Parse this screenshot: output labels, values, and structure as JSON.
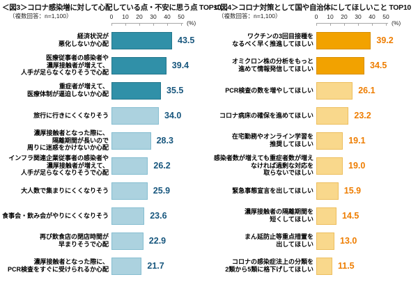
{
  "page": {
    "background": "#ffffff"
  },
  "chart_data": [
    {
      "type": "bar",
      "orientation": "horizontal",
      "title": "＜図3＞コロナ感染増に対して心配している点・不安に思う点 TOP10",
      "subtitle": "（複数回答：n=1,100）",
      "axis_unit": "(%)",
      "xlim": [
        0,
        50
      ],
      "ticks": [
        0,
        10,
        20,
        30,
        40,
        50
      ],
      "grid": false,
      "legend": "none",
      "categories": [
        "経済状況が\n悪化しないか心配",
        "医療従事者の感染者や\n濃厚接触者が増えて、\n人手が足らなくなりそうで心配",
        "重症者が増えて、\n医療体制が逼迫しないか心配",
        "旅行に行きにくくなりそう",
        "濃厚接触者となった際に、\n隔離期間が長いので\n周りに迷惑をかけないか心配",
        "インフラ関連企業従事者の感染者や\n濃厚接触者が増えて、\n人手が足らなくなりそうで心配",
        "大人数で集まりにくくなりそう",
        "食事会・飲み会がやりにくくなりそう",
        "再び飲食店の閉店時間が\n早まりそうで心配",
        "濃厚接触者となった際に、\nPCR検査をすぐに受けられるか心配"
      ],
      "values": [
        43.5,
        39.4,
        35.5,
        34.0,
        28.3,
        26.2,
        25.9,
        23.6,
        22.9,
        21.7
      ],
      "emphasis": [
        "dark",
        "dark",
        "dark",
        "light",
        "light",
        "light",
        "light",
        "light",
        "light",
        "light"
      ],
      "colors": {
        "dark_fill": "#3090A8",
        "dark_border": "#22758B",
        "light_fill": "#ACD2DF",
        "light_border": "#85BDD0",
        "value_text": "#17567D"
      }
    },
    {
      "type": "bar",
      "orientation": "horizontal",
      "title": "＜図4＞コロナ対策として国や自治体にしてほしいこと TOP10",
      "subtitle": "（複数回答：n=1,100）",
      "axis_unit": "(%)",
      "xlim": [
        0,
        50
      ],
      "ticks": [
        0,
        10,
        20,
        30,
        40,
        50
      ],
      "grid": false,
      "legend": "none",
      "categories": [
        "ワクチンの3回目接種を\nなるべく早く推進してほしい",
        "オミクロン株の分析をもっと\n進めて情報発信してほしい",
        "PCR検査の数を増やしてほしい",
        "コロナ病床の確保を進めてほしい",
        "在宅勤務やオンライン学習を\n推奨してほしい",
        "感染者数が増えても重症者数が増え\nなければ過剰な対応を\n取らないでほしい",
        "緊急事態宣言を出してほしい",
        "濃厚接触者の隔離期間を\n短くしてほしい",
        "まん延防止等重点措置を\n出してほしい",
        "コロナの感染症法上の分類を\n2類から5類に格下げしてほしい"
      ],
      "values": [
        39.2,
        34.5,
        26.1,
        23.2,
        19.1,
        19.0,
        15.9,
        14.5,
        13.0,
        11.5
      ],
      "emphasis": [
        "dark",
        "dark",
        "light",
        "light",
        "light",
        "light",
        "light",
        "light",
        "light",
        "light"
      ],
      "colors": {
        "dark_fill": "#F2A200",
        "dark_border": "#D88E00",
        "light_fill": "#F9D88C",
        "light_border": "#EDBE5E",
        "value_text": "#EE7D00"
      }
    }
  ]
}
